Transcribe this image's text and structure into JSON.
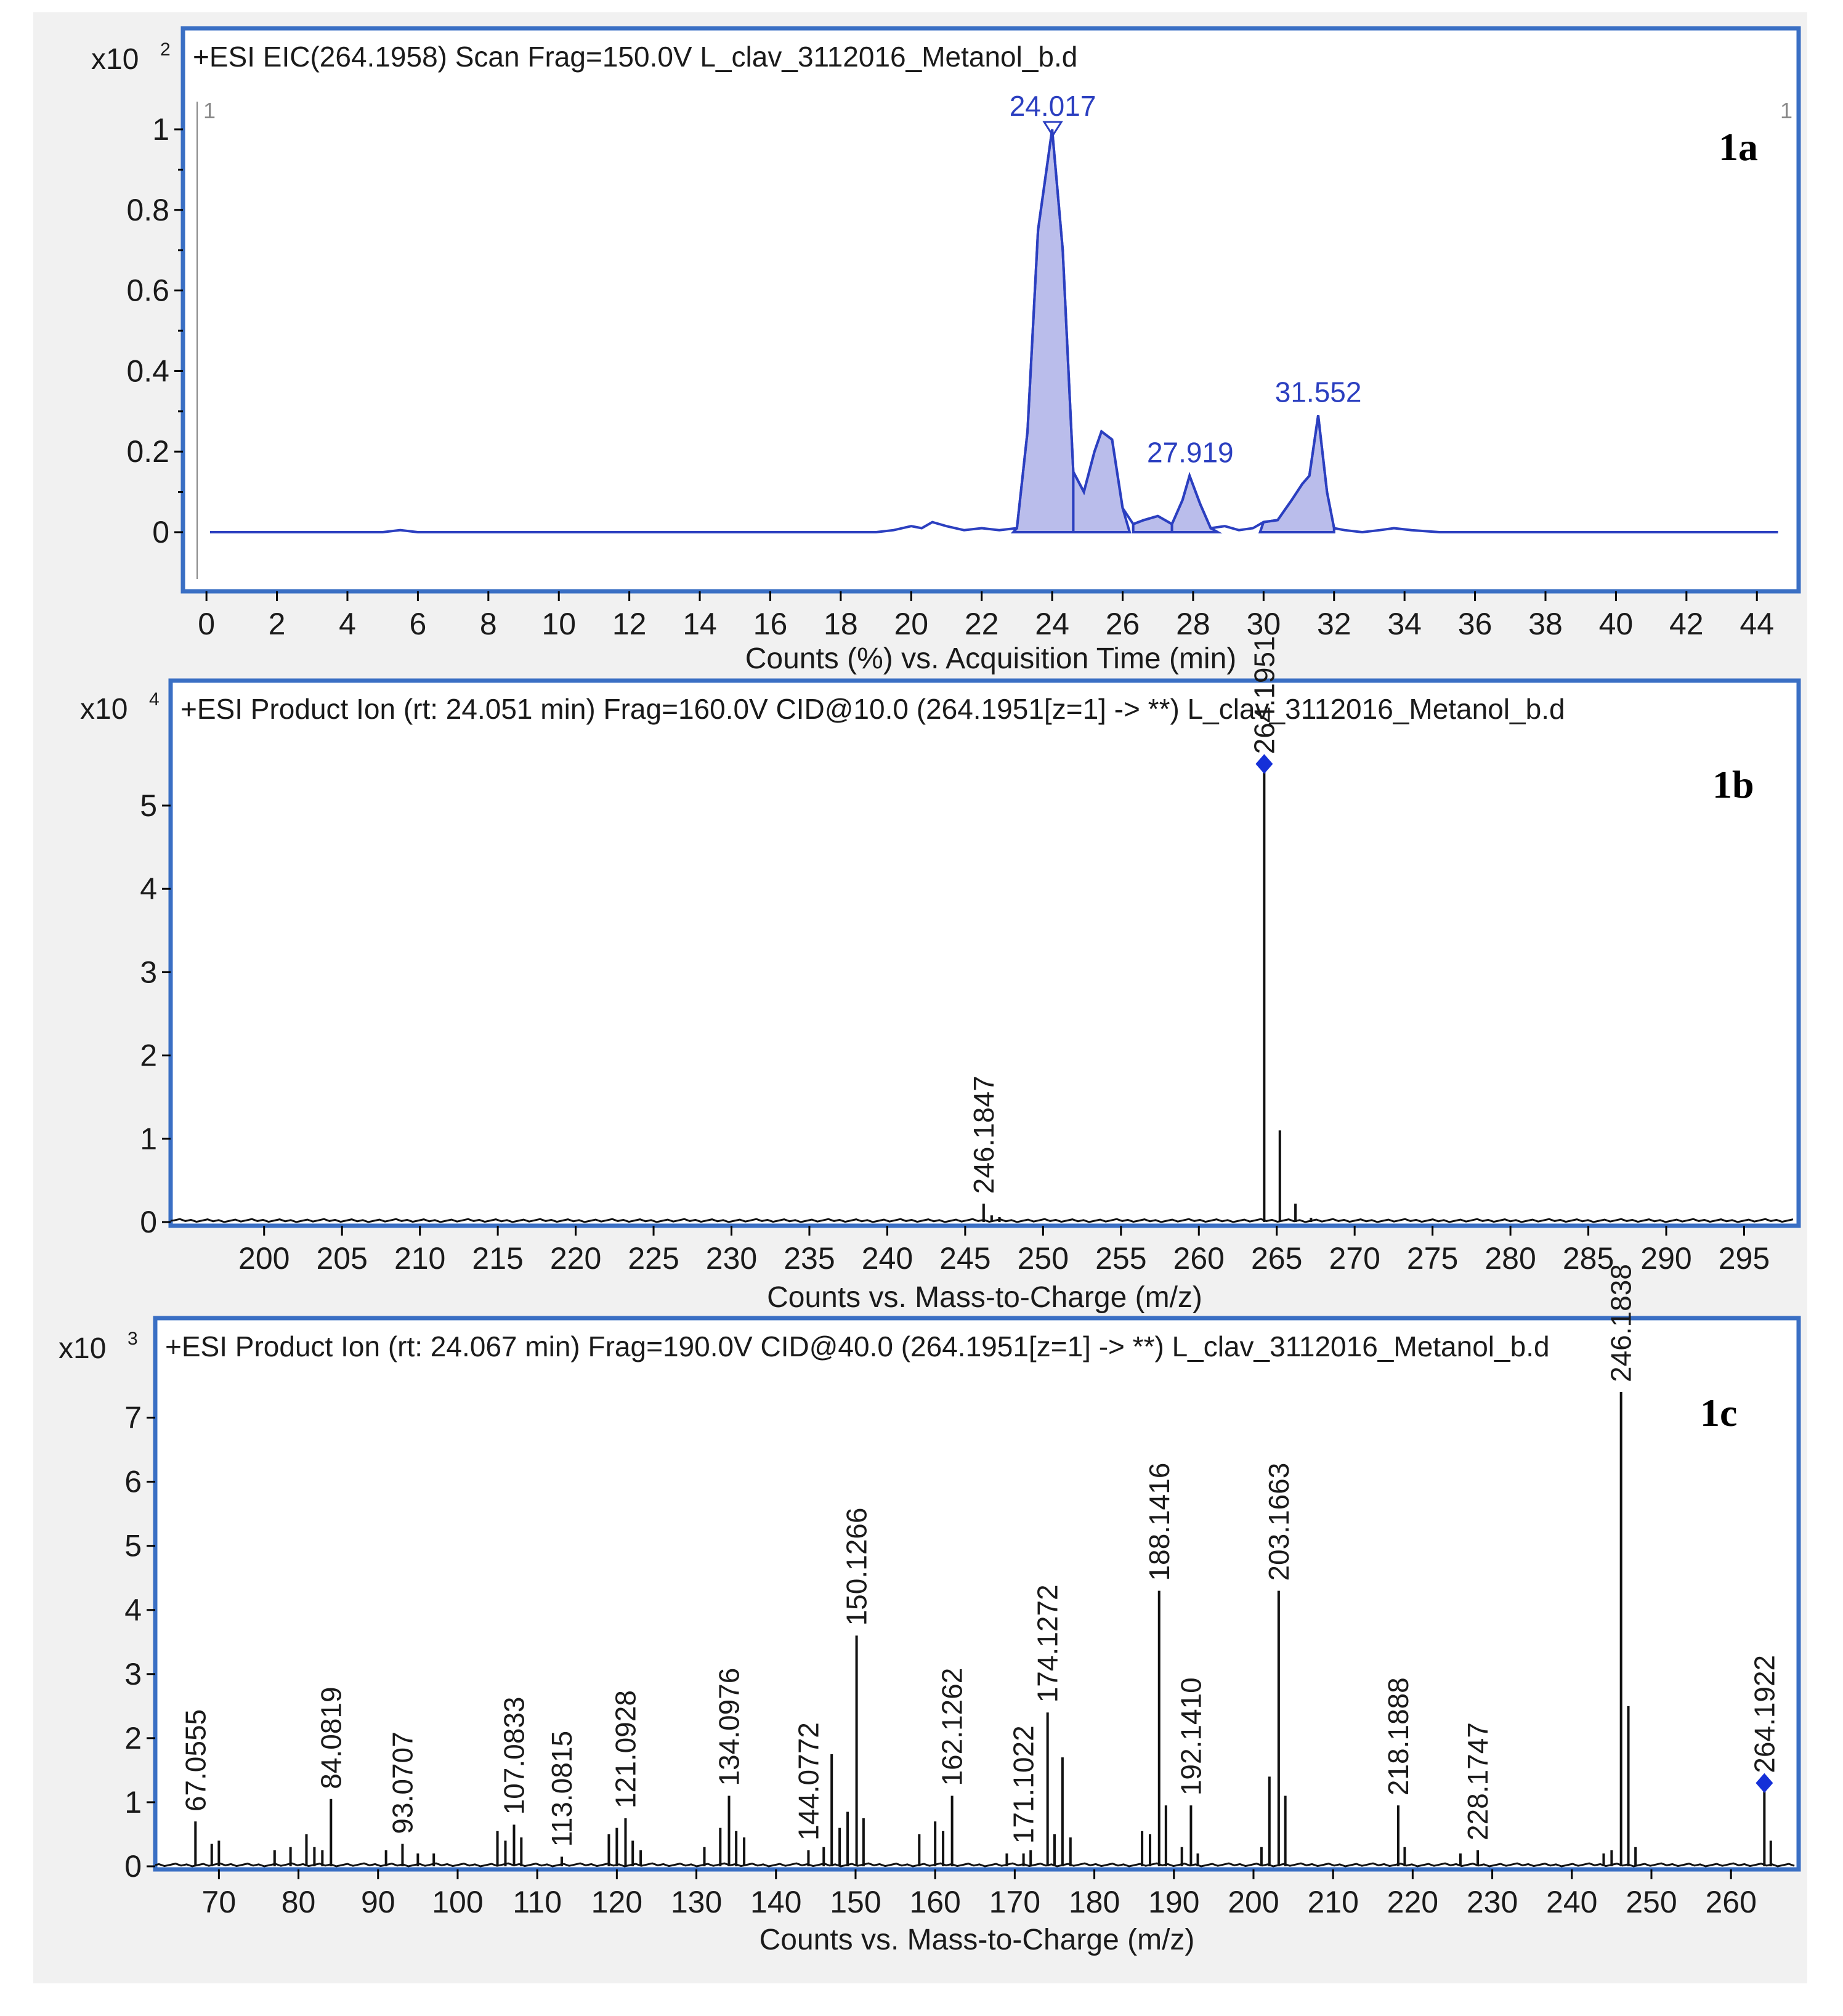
{
  "chart_data": [
    {
      "panel": "1a",
      "type": "area",
      "title": "+ESI EIC(264.1958) Scan Frag=150.0V L_clav_3112016_Metanol_b.d",
      "multiplier": "x10",
      "multiplier_exp": "2",
      "xlabel": "Counts (%) vs. Acquisition Time (min)",
      "ylabel": "",
      "xlim": [
        -0.3,
        44.8
      ],
      "ylim": [
        -0.14,
        1.25
      ],
      "xticks": [
        0,
        2,
        4,
        6,
        8,
        10,
        12,
        14,
        16,
        18,
        20,
        22,
        24,
        26,
        28,
        30,
        32,
        34,
        36,
        38,
        40,
        42,
        44
      ],
      "yticks": [
        0,
        0.2,
        0.4,
        0.6,
        0.8,
        1
      ],
      "ytick_labels": [
        "0",
        "0.2",
        "0.4",
        "0.6",
        "0.8",
        "1"
      ],
      "cursor_labels": [
        "1",
        "1"
      ],
      "annotations": [
        {
          "label": "24.017",
          "x": 24.017,
          "y": 1.0
        },
        {
          "label": "27.919",
          "x": 27.919,
          "y": 0.14
        },
        {
          "label": "31.552",
          "x": 31.552,
          "y": 0.29
        }
      ],
      "series": [
        {
          "x": [
            0.1,
            1,
            2,
            3,
            4,
            5,
            5.5,
            6,
            7,
            8,
            9,
            10,
            11,
            12,
            13,
            14,
            15,
            16,
            17,
            18,
            19,
            19.5,
            20,
            20.3,
            20.6,
            21,
            21.5,
            22,
            22.5,
            23,
            23.3,
            23.6,
            24.0,
            24.3,
            24.6,
            24.9,
            25.2,
            25.4,
            25.7,
            26.0,
            26.3,
            26.6,
            27.0,
            27.4,
            27.7,
            27.9,
            28.2,
            28.5,
            28.9,
            29.3,
            29.7,
            30.0,
            30.4,
            30.8,
            31.1,
            31.3,
            31.55,
            31.8,
            32.0,
            32.3,
            32.8,
            33.3,
            33.7,
            34.2,
            35,
            36,
            37,
            38,
            39,
            40,
            41,
            42,
            43,
            44,
            44.6
          ],
          "y": [
            0.0,
            0.0,
            0.0,
            0.0,
            0.0,
            0.0,
            0.005,
            0.0,
            0.0,
            0.0,
            0.0,
            0.0,
            0.0,
            0.0,
            0.0,
            0.0,
            0.0,
            0.0,
            0.0,
            0.0,
            0.0,
            0.005,
            0.015,
            0.01,
            0.025,
            0.015,
            0.005,
            0.01,
            0.005,
            0.01,
            0.25,
            0.75,
            1.0,
            0.7,
            0.15,
            0.1,
            0.2,
            0.25,
            0.23,
            0.06,
            0.02,
            0.03,
            0.04,
            0.02,
            0.08,
            0.14,
            0.07,
            0.01,
            0.015,
            0.005,
            0.01,
            0.025,
            0.03,
            0.08,
            0.12,
            0.14,
            0.29,
            0.1,
            0.01,
            0.005,
            0.0,
            0.005,
            0.01,
            0.005,
            0.0,
            0.0,
            0.0,
            0.0,
            0.0,
            0.0,
            0.0,
            0.0,
            0.0,
            0.0,
            0.0
          ],
          "shaded_peaks": [
            [
              22.9,
              24.6
            ],
            [
              24.6,
              26.2
            ],
            [
              26.3,
              27.4
            ],
            [
              27.4,
              28.7
            ],
            [
              29.9,
              32.0
            ]
          ]
        }
      ]
    },
    {
      "panel": "1b",
      "type": "bar",
      "title": "+ESI Product Ion (rt: 24.051 min) Frag=160.0V CID@10.0 (264.1951[z=1] -> **) L_clav_3112016_Metanol_b.d",
      "multiplier": "x10",
      "multiplier_exp": "4",
      "xlabel": "Counts vs. Mass-to-Charge (m/z)",
      "ylabel": "",
      "xlim": [
        194,
        298.5
      ],
      "ylim": [
        0,
        5.65
      ],
      "xticks": [
        200,
        205,
        210,
        215,
        220,
        225,
        230,
        235,
        240,
        245,
        250,
        255,
        260,
        265,
        270,
        275,
        280,
        285,
        290,
        295
      ],
      "yticks": [
        0,
        1,
        2,
        3,
        4,
        5
      ],
      "precursor": {
        "mz": 264.1951,
        "intensity": 5.5
      },
      "peaks": [
        {
          "mz": 246.1847,
          "intensity": 0.22,
          "label": "246.1847"
        },
        {
          "mz": 246.7,
          "intensity": 0.08
        },
        {
          "mz": 247.2,
          "intensity": 0.06
        },
        {
          "mz": 264.1951,
          "intensity": 5.5,
          "label": "264.1951"
        },
        {
          "mz": 265.2,
          "intensity": 1.1
        },
        {
          "mz": 266.2,
          "intensity": 0.22
        },
        {
          "mz": 267.2,
          "intensity": 0.05
        }
      ]
    },
    {
      "panel": "1c",
      "type": "bar",
      "title": "+ESI Product Ion (rt: 24.067 min) Frag=190.0V CID@40.0 (264.1951[z=1] -> **) L_clav_3112016_Metanol_b.d",
      "multiplier": "x10",
      "multiplier_exp": "3",
      "xlabel": "Counts vs. Mass-to-Charge (m/z)",
      "ylabel": "",
      "xlim": [
        62,
        268.5
      ],
      "ylim": [
        0,
        7.4
      ],
      "xticks": [
        70,
        80,
        90,
        100,
        110,
        120,
        130,
        140,
        150,
        160,
        170,
        180,
        190,
        200,
        210,
        220,
        230,
        240,
        250,
        260
      ],
      "yticks": [
        0,
        1,
        2,
        3,
        4,
        5,
        6,
        7
      ],
      "precursor": {
        "mz": 264.1922,
        "intensity": 1.3
      },
      "peaks": [
        {
          "mz": 67.0555,
          "intensity": 0.7,
          "label": "67.0555"
        },
        {
          "mz": 69.1,
          "intensity": 0.35
        },
        {
          "mz": 70.0,
          "intensity": 0.4
        },
        {
          "mz": 77.0,
          "intensity": 0.25
        },
        {
          "mz": 79.0,
          "intensity": 0.3
        },
        {
          "mz": 81.0,
          "intensity": 0.5
        },
        {
          "mz": 82.0,
          "intensity": 0.3
        },
        {
          "mz": 83.0,
          "intensity": 0.25
        },
        {
          "mz": 84.0819,
          "intensity": 1.05,
          "label": "84.0819"
        },
        {
          "mz": 91.0,
          "intensity": 0.25
        },
        {
          "mz": 93.0707,
          "intensity": 0.35,
          "label": "93.0707"
        },
        {
          "mz": 95.0,
          "intensity": 0.2
        },
        {
          "mz": 97.0,
          "intensity": 0.2
        },
        {
          "mz": 105.0,
          "intensity": 0.55
        },
        {
          "mz": 106.0,
          "intensity": 0.4
        },
        {
          "mz": 107.0833,
          "intensity": 0.65,
          "label": "107.0833"
        },
        {
          "mz": 108.0,
          "intensity": 0.45
        },
        {
          "mz": 113.0815,
          "intensity": 0.15,
          "label": "113.0815"
        },
        {
          "mz": 119.0,
          "intensity": 0.5
        },
        {
          "mz": 120.0,
          "intensity": 0.6
        },
        {
          "mz": 121.0928,
          "intensity": 0.75,
          "label": "121.0928"
        },
        {
          "mz": 122.0,
          "intensity": 0.4
        },
        {
          "mz": 123.0,
          "intensity": 0.25
        },
        {
          "mz": 131.0,
          "intensity": 0.3
        },
        {
          "mz": 133.0,
          "intensity": 0.6
        },
        {
          "mz": 134.0976,
          "intensity": 1.1,
          "label": "134.0976"
        },
        {
          "mz": 135.0,
          "intensity": 0.55
        },
        {
          "mz": 136.0,
          "intensity": 0.45
        },
        {
          "mz": 144.0772,
          "intensity": 0.25,
          "label": "144.0772"
        },
        {
          "mz": 146.0,
          "intensity": 0.3
        },
        {
          "mz": 147.0,
          "intensity": 1.75
        },
        {
          "mz": 148.0,
          "intensity": 0.6
        },
        {
          "mz": 149.0,
          "intensity": 0.85
        },
        {
          "mz": 150.1266,
          "intensity": 3.6,
          "label": "150.1266"
        },
        {
          "mz": 151.0,
          "intensity": 0.75
        },
        {
          "mz": 158.0,
          "intensity": 0.5
        },
        {
          "mz": 160.0,
          "intensity": 0.7
        },
        {
          "mz": 161.0,
          "intensity": 0.55
        },
        {
          "mz": 162.1262,
          "intensity": 1.1,
          "label": "162.1262"
        },
        {
          "mz": 169.0,
          "intensity": 0.2
        },
        {
          "mz": 171.1022,
          "intensity": 0.2,
          "label": "171.1022"
        },
        {
          "mz": 172.0,
          "intensity": 0.25
        },
        {
          "mz": 174.1272,
          "intensity": 2.4,
          "label": "174.1272"
        },
        {
          "mz": 175.0,
          "intensity": 0.5
        },
        {
          "mz": 176.0,
          "intensity": 1.7
        },
        {
          "mz": 177.0,
          "intensity": 0.45
        },
        {
          "mz": 186.0,
          "intensity": 0.55
        },
        {
          "mz": 187.0,
          "intensity": 0.5
        },
        {
          "mz": 188.1416,
          "intensity": 4.3,
          "label": "188.1416"
        },
        {
          "mz": 189.0,
          "intensity": 0.95
        },
        {
          "mz": 191.0,
          "intensity": 0.3
        },
        {
          "mz": 192.141,
          "intensity": 0.95,
          "label": "192.1410"
        },
        {
          "mz": 193.0,
          "intensity": 0.2
        },
        {
          "mz": 201.0,
          "intensity": 0.3
        },
        {
          "mz": 202.0,
          "intensity": 1.4
        },
        {
          "mz": 203.1663,
          "intensity": 4.3,
          "label": "203.1663"
        },
        {
          "mz": 204.0,
          "intensity": 1.1
        },
        {
          "mz": 218.1888,
          "intensity": 0.95,
          "label": "218.1888"
        },
        {
          "mz": 219.0,
          "intensity": 0.3
        },
        {
          "mz": 226.0,
          "intensity": 0.2
        },
        {
          "mz": 228.1747,
          "intensity": 0.25,
          "label": "228.1747"
        },
        {
          "mz": 244.0,
          "intensity": 0.2
        },
        {
          "mz": 245.0,
          "intensity": 0.25
        },
        {
          "mz": 246.1838,
          "intensity": 7.4,
          "label": "246.1838"
        },
        {
          "mz": 247.1,
          "intensity": 2.5
        },
        {
          "mz": 248.0,
          "intensity": 0.3
        },
        {
          "mz": 264.1922,
          "intensity": 1.3,
          "label": "264.1922"
        },
        {
          "mz": 265.0,
          "intensity": 0.4
        }
      ]
    }
  ]
}
